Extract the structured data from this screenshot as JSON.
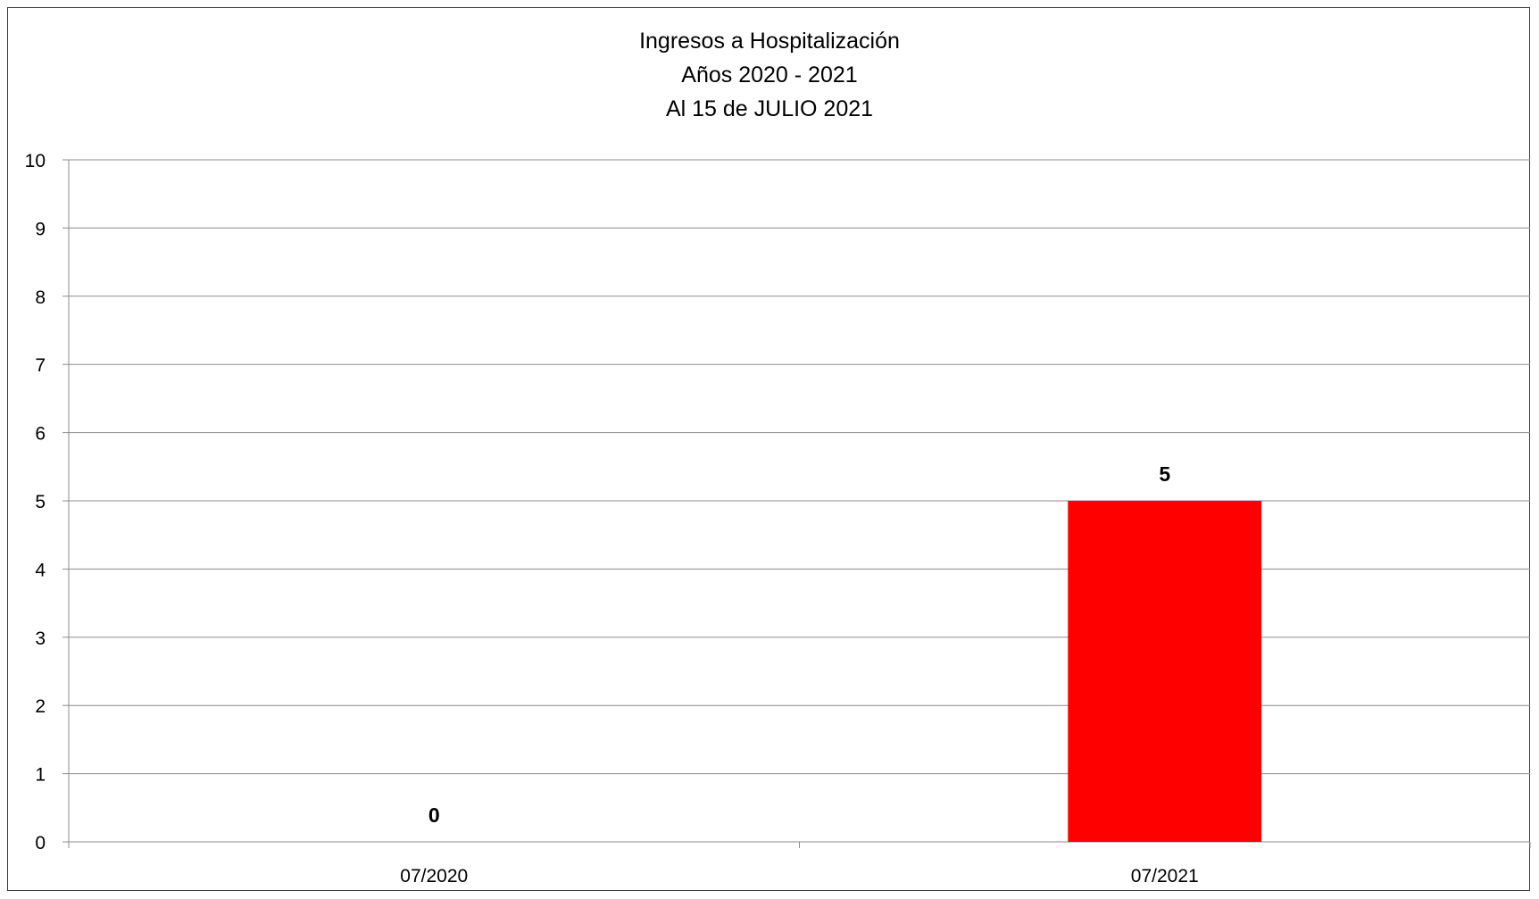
{
  "chart_data": {
    "type": "bar",
    "title_lines": [
      "Ingresos a Hospitalización",
      "Años 2020 - 2021",
      "Al 15 de JULIO 2021"
    ],
    "categories": [
      "07/2020",
      "07/2021"
    ],
    "values": [
      0,
      5
    ],
    "data_labels": [
      "0",
      "5"
    ],
    "ylim": [
      0,
      10
    ],
    "yticks": [
      0,
      1,
      2,
      3,
      4,
      5,
      6,
      7,
      8,
      9,
      10
    ],
    "grid": true,
    "legend": "none",
    "bar_color": "#ff0000",
    "xlabel": "",
    "ylabel": ""
  }
}
